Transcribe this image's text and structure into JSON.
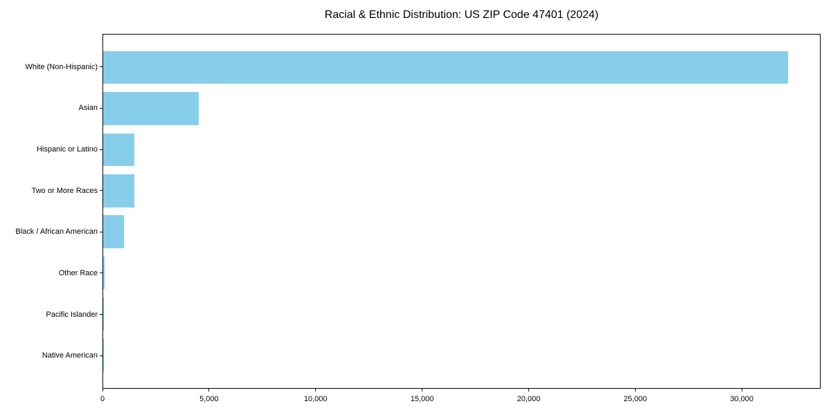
{
  "figure": {
    "background": "#ffffff",
    "axis_color": "#000000",
    "text_color": "#000000"
  },
  "chart_data": {
    "type": "bar",
    "orientation": "horizontal",
    "title": "Racial & Ethnic Distribution: US ZIP Code 47401 (2024)",
    "categories": [
      "White (Non-Hispanic)",
      "Asian",
      "Hispanic or Latino",
      "Two or More Races",
      "Black / African American",
      "Other Race",
      "Pacific Islander",
      "Native American"
    ],
    "values": [
      32200,
      4500,
      1450,
      1470,
      980,
      60,
      20,
      10
    ],
    "xlabel": "",
    "ylabel": "",
    "xlim": [
      0,
      33700
    ],
    "xticks": [
      0,
      5000,
      10000,
      15000,
      20000,
      25000,
      30000
    ],
    "xtick_labels": [
      "0",
      "5,000",
      "10,000",
      "15,000",
      "20,000",
      "25,000",
      "30,000"
    ],
    "bar_color": "#87CEEB",
    "grid": false,
    "legend": null
  }
}
